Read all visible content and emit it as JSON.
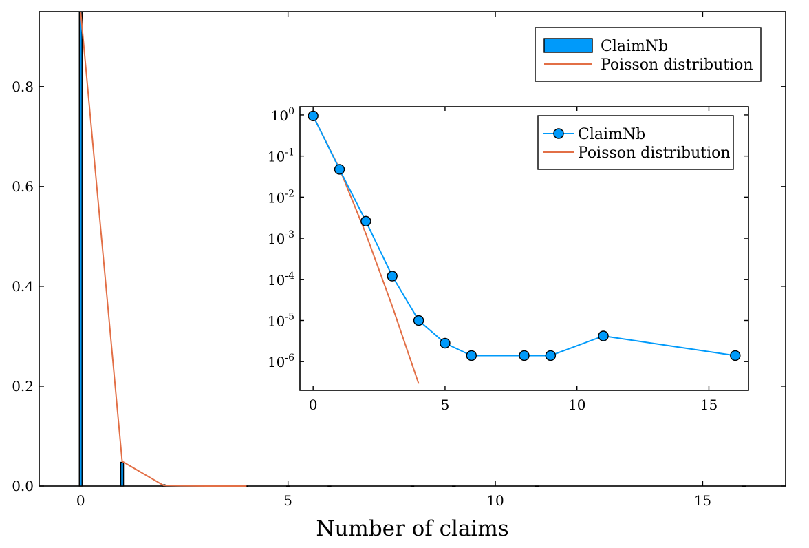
{
  "chart_data": [
    {
      "type": "bar",
      "role": "main",
      "xlabel": "Number of claims",
      "ylabel": "",
      "xlim": [
        -1,
        17
      ],
      "ylim": [
        0,
        0.95
      ],
      "xticks": [
        0,
        5,
        10,
        15
      ],
      "yticks": [
        0.0,
        0.2,
        0.4,
        0.6,
        0.8
      ],
      "ytick_labels": [
        "0.0",
        "0.2",
        "0.4",
        "0.6",
        "0.8"
      ],
      "grid": false,
      "legend_position": "top-right",
      "series": [
        {
          "name": "ClaimNb",
          "kind": "bar",
          "color": "#009AFA",
          "x": [
            0,
            1,
            2,
            3,
            4,
            5,
            6,
            8,
            9,
            11,
            16
          ],
          "values": [
            0.9497,
            0.0475,
            0.0026,
            0.00012,
            1e-05,
            2.8e-06,
            1.4e-06,
            1.4e-06,
            1.4e-06,
            4.2e-06,
            1.4e-06
          ]
        },
        {
          "name": "Poisson distribution",
          "kind": "line",
          "color": "#E26F46",
          "x": [
            0,
            1,
            2,
            3,
            4
          ],
          "values": [
            0.949,
            0.0494,
            0.00128,
            2.22e-05,
            2.9e-07
          ]
        }
      ]
    },
    {
      "type": "line",
      "role": "inset",
      "xlabel": "",
      "ylabel": "",
      "yscale": "log",
      "xlim": [
        -0.5,
        16.5
      ],
      "ylim_exponents": [
        -6.7,
        0.2
      ],
      "xticks": [
        0,
        5,
        10,
        15
      ],
      "ytick_exponents": [
        0,
        -1,
        -2,
        -3,
        -4,
        -5,
        -6
      ],
      "ytick_base": "10",
      "grid": false,
      "legend_position": "top-right",
      "series": [
        {
          "name": "ClaimNb",
          "kind": "line+markers",
          "color": "#009AFA",
          "x": [
            0,
            1,
            2,
            3,
            4,
            5,
            6,
            8,
            9,
            11,
            16
          ],
          "values": [
            0.9497,
            0.0475,
            0.0026,
            0.00012,
            1e-05,
            2.8e-06,
            1.4e-06,
            1.4e-06,
            1.4e-06,
            4.2e-06,
            1.4e-06
          ]
        },
        {
          "name": "Poisson distribution",
          "kind": "line",
          "color": "#E26F46",
          "x": [
            0,
            1,
            2,
            3,
            4
          ],
          "values": [
            0.949,
            0.0494,
            0.00128,
            2.22e-05,
            2.9e-07
          ]
        }
      ]
    }
  ]
}
